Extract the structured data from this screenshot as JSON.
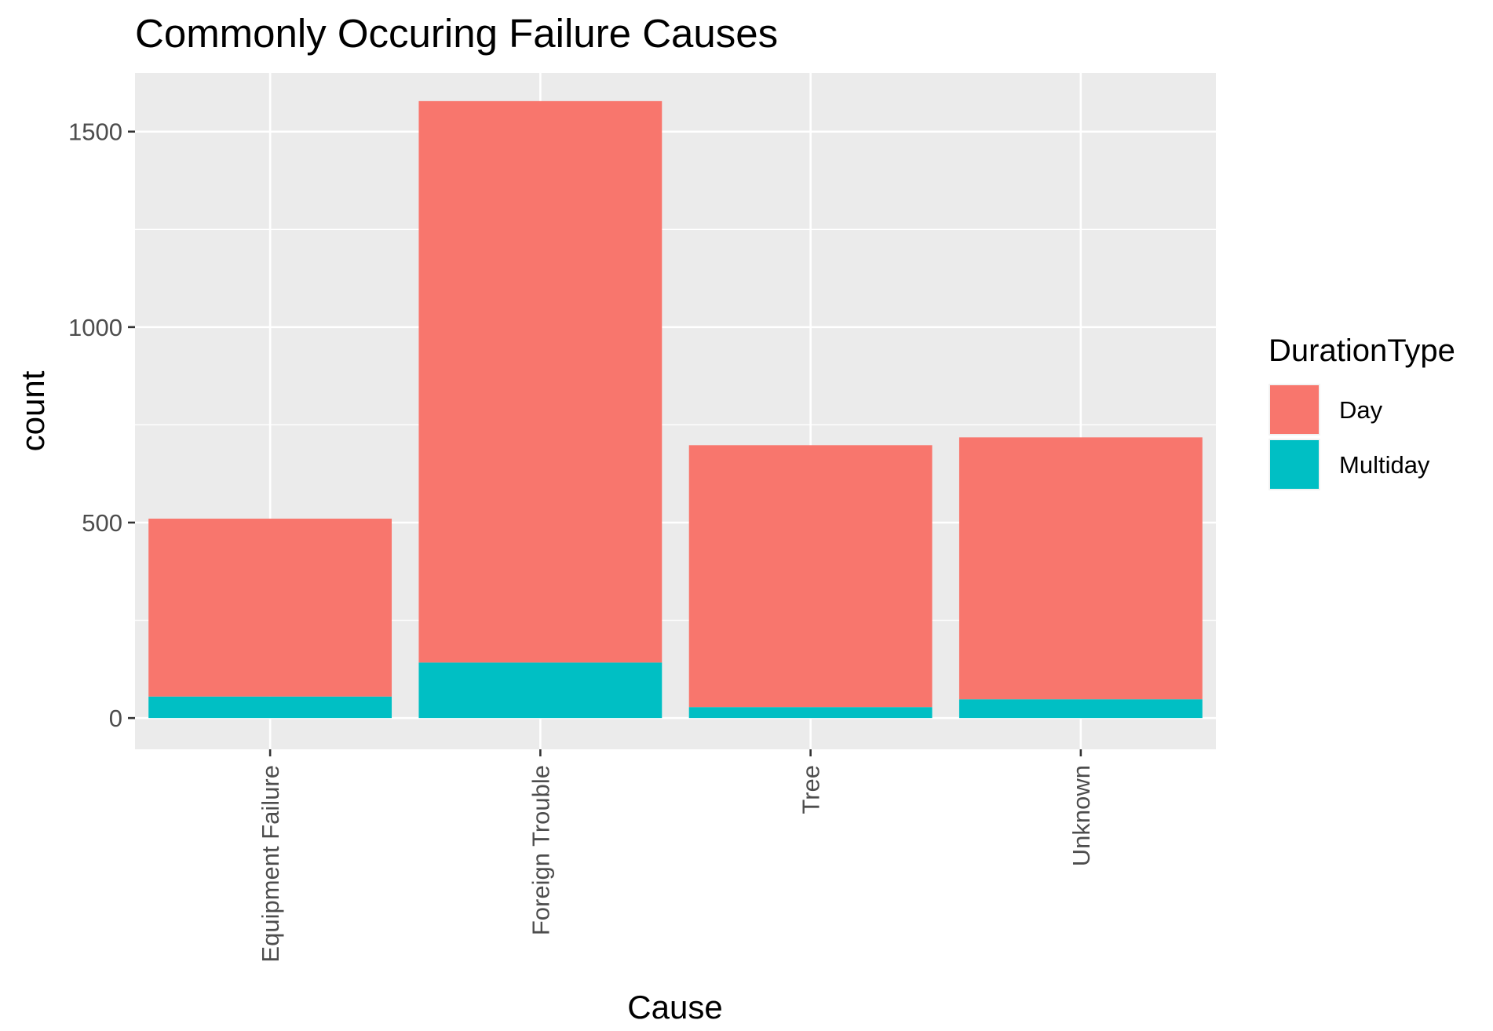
{
  "chart_data": {
    "type": "bar",
    "stacked": true,
    "title": "Commonly Occuring Failure Causes",
    "xlabel": "Cause",
    "ylabel": "count",
    "categories": [
      "Equipment Failure",
      "Foreign Trouble",
      "Tree",
      "Unknown"
    ],
    "series": [
      {
        "name": "Multiday",
        "color": "#00BFC4",
        "values": [
          55,
          142,
          28,
          48
        ]
      },
      {
        "name": "Day",
        "color": "#F8766D",
        "values": [
          455,
          1436,
          670,
          670
        ]
      }
    ],
    "totals": [
      510,
      1578,
      698,
      718
    ],
    "ylim": [
      -80,
      1650
    ],
    "yticks": [
      0,
      500,
      1000,
      1500
    ],
    "yticks_labels": [
      "0",
      "500",
      "1000",
      "1500"
    ],
    "x_tick_label_rotation": "vertical",
    "grid": true,
    "panel_background": "#EBEBEB",
    "grid_color": "#FFFFFF",
    "legend": {
      "title": "DurationType",
      "placement": "right",
      "items": [
        {
          "label": "Day",
          "color": "#F8766D"
        },
        {
          "label": "Multiday",
          "color": "#00BFC4"
        }
      ]
    }
  }
}
